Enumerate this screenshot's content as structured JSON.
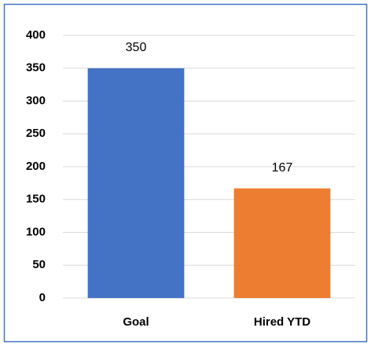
{
  "chart_data": {
    "type": "bar",
    "categories": [
      "Goal",
      "Hired YTD"
    ],
    "values": [
      350,
      167
    ],
    "colors": [
      "#4472c4",
      "#ed7d31"
    ],
    "ylim": [
      0,
      400
    ],
    "yticks": [
      0,
      50,
      100,
      150,
      200,
      250,
      300,
      350,
      400
    ],
    "grid": true
  }
}
